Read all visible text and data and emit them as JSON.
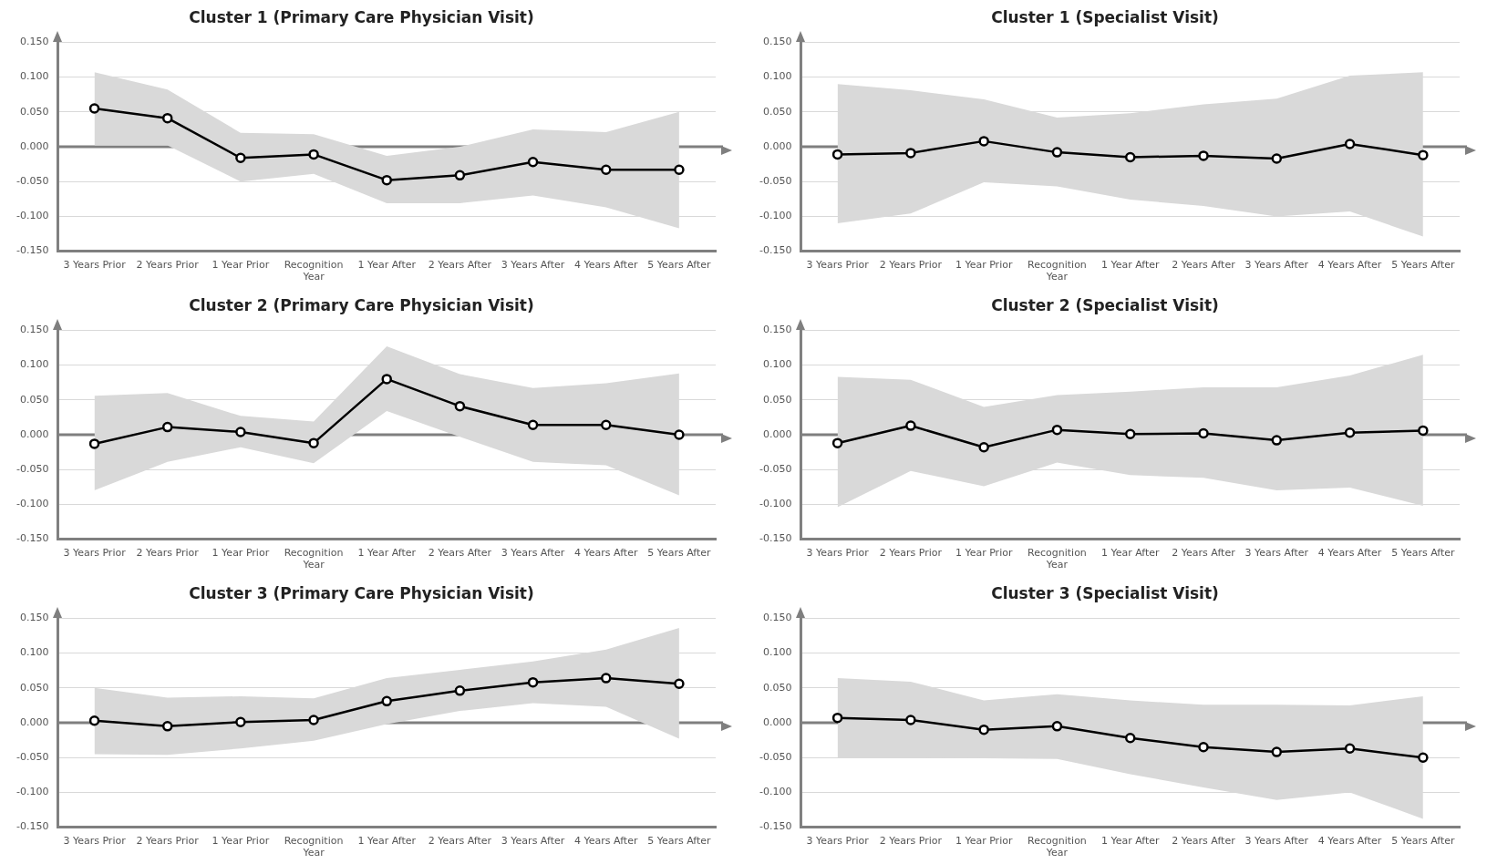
{
  "chart_data": [
    {
      "type": "line",
      "title": "Cluster 1 (Primary Care Physician Visit)",
      "categories": [
        "3 Years Prior",
        "2 Years Prior",
        "1 Year Prior",
        "Recognition Year",
        "1 Year After",
        "2 Years After",
        "3 Years After",
        "4 Years After",
        "5 Years After"
      ],
      "series": [
        {
          "color": "#000000",
          "values": [
            0.055,
            0.041,
            -0.016,
            -0.011,
            -0.048,
            -0.041,
            -0.022,
            -0.033,
            -0.033
          ],
          "lower": [
            0.002,
            0.002,
            -0.05,
            -0.039,
            -0.081,
            -0.081,
            -0.07,
            -0.087,
            -0.117
          ],
          "upper": [
            0.107,
            0.082,
            0.02,
            0.018,
            -0.013,
            0.0,
            0.025,
            0.021,
            0.05
          ]
        }
      ],
      "ylim": [
        -0.15,
        0.15
      ],
      "yticks": [
        {
          "value": -0.15,
          "label": "-0.150"
        },
        {
          "value": -0.1,
          "label": "-0.100"
        },
        {
          "value": -0.05,
          "label": "-0.050"
        },
        {
          "value": 0,
          "label": "0.000"
        },
        {
          "value": 0.05,
          "label": "0.050"
        },
        {
          "value": 0.1,
          "label": "0.100"
        },
        {
          "value": 0.15,
          "label": "0.150"
        }
      ],
      "ref_lines": [
        {
          "axis": "y",
          "value": 0,
          "color": "#7f7f7f"
        }
      ],
      "grid": "y",
      "marker": "circle",
      "line_style": "solid",
      "legend": false
    },
    {
      "type": "line",
      "title": "Cluster 1 (Specialist Visit)",
      "categories": [
        "3 Years Prior",
        "2 Years Prior",
        "1 Year Prior",
        "Recognition Year",
        "1 Year After",
        "2 Years After",
        "3 Years After",
        "4 Years After",
        "5 Years After"
      ],
      "series": [
        {
          "color": "#000000",
          "values": [
            -0.011,
            -0.009,
            0.008,
            -0.008,
            -0.015,
            -0.013,
            -0.017,
            0.004,
            -0.012
          ],
          "lower": [
            -0.11,
            -0.096,
            -0.051,
            -0.057,
            -0.076,
            -0.085,
            -0.1,
            -0.093,
            -0.129
          ],
          "upper": [
            0.09,
            0.081,
            0.068,
            0.042,
            0.048,
            0.061,
            0.069,
            0.102,
            0.107
          ]
        }
      ],
      "ylim": [
        -0.15,
        0.15
      ],
      "yticks": [
        {
          "value": -0.15,
          "label": "-0.150"
        },
        {
          "value": -0.1,
          "label": "-0.100"
        },
        {
          "value": -0.05,
          "label": "-0.050"
        },
        {
          "value": 0,
          "label": "0.000"
        },
        {
          "value": 0.05,
          "label": "0.050"
        },
        {
          "value": 0.1,
          "label": "0.100"
        },
        {
          "value": 0.15,
          "label": "0.150"
        }
      ],
      "ref_lines": [
        {
          "axis": "y",
          "value": 0,
          "color": "#7f7f7f"
        }
      ],
      "grid": "y",
      "marker": "circle",
      "line_style": "solid",
      "legend": false
    },
    {
      "type": "line",
      "title": "Cluster 2 (Primary Care Physician Visit)",
      "categories": [
        "3 Years Prior",
        "2 Years Prior",
        "1 Year Prior",
        "Recognition Year",
        "1 Year After",
        "2 Years After",
        "3 Years After",
        "4 Years After",
        "5 Years After"
      ],
      "series": [
        {
          "color": "#000000",
          "values": [
            -0.013,
            0.011,
            0.004,
            -0.012,
            0.08,
            0.041,
            0.014,
            0.014,
            0.0
          ],
          "lower": [
            -0.08,
            -0.039,
            -0.018,
            -0.041,
            0.034,
            -0.003,
            -0.039,
            -0.044,
            -0.087
          ],
          "upper": [
            0.056,
            0.06,
            0.027,
            0.019,
            0.127,
            0.087,
            0.067,
            0.074,
            0.088
          ]
        }
      ],
      "ylim": [
        -0.15,
        0.15
      ],
      "yticks": [
        {
          "value": -0.15,
          "label": "-0.150"
        },
        {
          "value": -0.1,
          "label": "-0.100"
        },
        {
          "value": -0.05,
          "label": "-0.050"
        },
        {
          "value": 0,
          "label": "0.000"
        },
        {
          "value": 0.05,
          "label": "0.050"
        },
        {
          "value": 0.1,
          "label": "0.100"
        },
        {
          "value": 0.15,
          "label": "0.150"
        }
      ],
      "ref_lines": [
        {
          "axis": "y",
          "value": 0,
          "color": "#7f7f7f"
        }
      ],
      "grid": "y",
      "marker": "circle",
      "line_style": "solid",
      "legend": false
    },
    {
      "type": "line",
      "title": "Cluster 2 (Specialist Visit)",
      "categories": [
        "3 Years Prior",
        "2 Years Prior",
        "1 Year Prior",
        "Recognition Year",
        "1 Year After",
        "2 Years After",
        "3 Years After",
        "4 Years After",
        "5 Years After"
      ],
      "series": [
        {
          "color": "#000000",
          "values": [
            -0.012,
            0.013,
            -0.018,
            0.007,
            0.001,
            0.002,
            -0.008,
            0.003,
            0.006
          ],
          "lower": [
            -0.104,
            -0.052,
            -0.074,
            -0.04,
            -0.058,
            -0.062,
            -0.08,
            -0.076,
            -0.102
          ],
          "upper": [
            0.083,
            0.079,
            0.04,
            0.057,
            0.062,
            0.068,
            0.068,
            0.085,
            0.115
          ]
        }
      ],
      "ylim": [
        -0.15,
        0.15
      ],
      "yticks": [
        {
          "value": -0.15,
          "label": "-0.150"
        },
        {
          "value": -0.1,
          "label": "-0.100"
        },
        {
          "value": -0.05,
          "label": "-0.050"
        },
        {
          "value": 0,
          "label": "0.000"
        },
        {
          "value": 0.05,
          "label": "0.050"
        },
        {
          "value": 0.1,
          "label": "0.100"
        },
        {
          "value": 0.15,
          "label": "0.150"
        }
      ],
      "ref_lines": [
        {
          "axis": "y",
          "value": 0,
          "color": "#7f7f7f"
        }
      ],
      "grid": "y",
      "marker": "circle",
      "line_style": "solid",
      "legend": false
    },
    {
      "type": "line",
      "title": "Cluster 3 (Primary Care Physician Visit)",
      "categories": [
        "3 Years Prior",
        "2 Years Prior",
        "1 Year Prior",
        "Recognition Year",
        "1 Year After",
        "2 Years After",
        "3 Years After",
        "4 Years After",
        "5 Years After"
      ],
      "series": [
        {
          "color": "#000000",
          "values": [
            0.003,
            -0.005,
            0.001,
            0.004,
            0.031,
            0.046,
            0.058,
            0.064,
            0.056
          ],
          "lower": [
            -0.045,
            -0.046,
            -0.037,
            -0.026,
            -0.002,
            0.017,
            0.028,
            0.023,
            -0.023
          ],
          "upper": [
            0.05,
            0.036,
            0.038,
            0.035,
            0.064,
            0.076,
            0.088,
            0.105,
            0.136
          ]
        }
      ],
      "ylim": [
        -0.15,
        0.15
      ],
      "yticks": [
        {
          "value": -0.15,
          "label": "-0.150"
        },
        {
          "value": -0.1,
          "label": "-0.100"
        },
        {
          "value": -0.05,
          "label": "-0.050"
        },
        {
          "value": 0,
          "label": "0.000"
        },
        {
          "value": 0.05,
          "label": "0.050"
        },
        {
          "value": 0.1,
          "label": "0.100"
        },
        {
          "value": 0.15,
          "label": "0.150"
        }
      ],
      "ref_lines": [
        {
          "axis": "y",
          "value": 0,
          "color": "#7f7f7f"
        }
      ],
      "grid": "y",
      "marker": "circle",
      "line_style": "solid",
      "legend": false
    },
    {
      "type": "line",
      "title": "Cluster 3 (Specialist Visit)",
      "categories": [
        "3 Years Prior",
        "2 Years Prior",
        "1 Year Prior",
        "Recognition Year",
        "1 Year After",
        "2 Years After",
        "3 Years After",
        "4 Years After",
        "5 Years After"
      ],
      "series": [
        {
          "color": "#000000",
          "values": [
            0.007,
            0.004,
            -0.01,
            -0.005,
            -0.022,
            -0.035,
            -0.042,
            -0.037,
            -0.05
          ],
          "lower": [
            -0.05,
            -0.05,
            -0.051,
            -0.052,
            -0.074,
            -0.093,
            -0.111,
            -0.1,
            -0.138
          ],
          "upper": [
            0.064,
            0.059,
            0.032,
            0.041,
            0.032,
            0.026,
            0.026,
            0.025,
            0.038
          ]
        }
      ],
      "ylim": [
        -0.15,
        0.15
      ],
      "yticks": [
        {
          "value": -0.15,
          "label": "-0.150"
        },
        {
          "value": -0.1,
          "label": "-0.100"
        },
        {
          "value": -0.05,
          "label": "-0.050"
        },
        {
          "value": 0,
          "label": "0.000"
        },
        {
          "value": 0.05,
          "label": "0.050"
        },
        {
          "value": 0.1,
          "label": "0.100"
        },
        {
          "value": 0.15,
          "label": "0.150"
        }
      ],
      "ref_lines": [
        {
          "axis": "y",
          "value": 0,
          "color": "#7f7f7f"
        }
      ],
      "grid": "y",
      "marker": "circle",
      "line_style": "solid",
      "legend": false
    }
  ]
}
